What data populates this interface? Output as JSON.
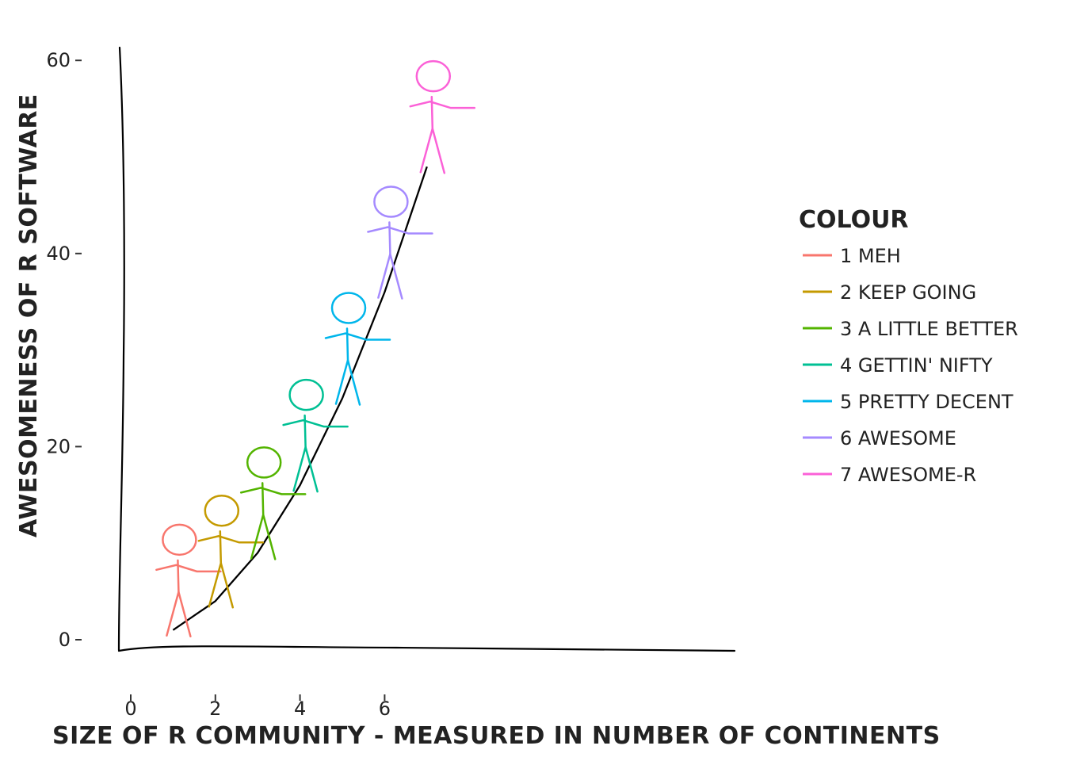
{
  "chart_data": {
    "type": "line",
    "xlabel": "SIZE OF R COMMUNITY - MEASURED IN NUMBER OF CONTINENTS",
    "ylabel": "AWESOMENESS OF R SOFTWARE",
    "xlim": [
      -0.2,
      7.2
    ],
    "ylim": [
      -1.5,
      61.5
    ],
    "x_ticks": [
      0,
      2,
      4,
      6
    ],
    "y_ticks": [
      0,
      20,
      40,
      60
    ],
    "grid": false,
    "legend_position": "right",
    "legend_title": "COLOUR",
    "line": {
      "color": "#000000",
      "x": [
        1,
        2,
        3,
        4,
        5,
        6,
        7
      ],
      "y": [
        1,
        4,
        9,
        16,
        25,
        36,
        49
      ]
    },
    "series": [
      {
        "name": "1 MEH",
        "color": "#F8766D",
        "x": 1,
        "y": 1
      },
      {
        "name": "2 KEEP GOING",
        "color": "#C49A00",
        "x": 2,
        "y": 4
      },
      {
        "name": "3 A LITTLE BETTER",
        "color": "#53B400",
        "x": 3,
        "y": 9
      },
      {
        "name": "4 GETTIN' NIFTY",
        "color": "#00C094",
        "x": 4,
        "y": 16
      },
      {
        "name": "5 PRETTY DECENT",
        "color": "#00B6EB",
        "x": 5,
        "y": 25
      },
      {
        "name": "6 AWESOME",
        "color": "#A58AFF",
        "x": 6,
        "y": 36
      },
      {
        "name": "7 AWESOME-R",
        "color": "#FB61D7",
        "x": 7,
        "y": 49
      }
    ]
  }
}
